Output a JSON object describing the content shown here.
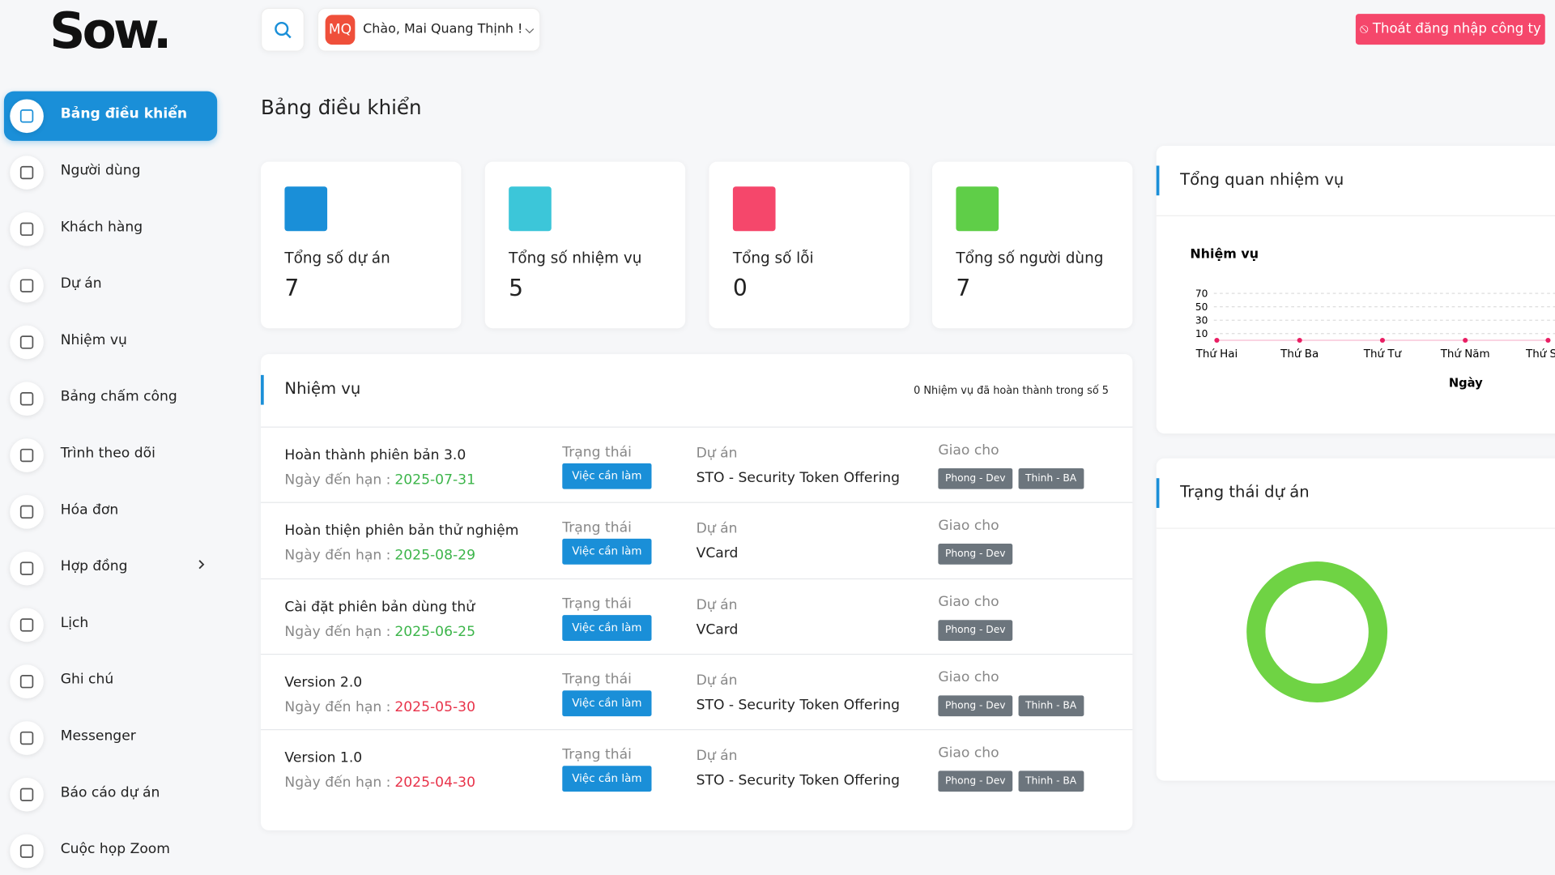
{
  "brand": "Sow.",
  "header": {
    "avatar": "MQ",
    "greeting": "Chào, Mai Quang Thịnh !",
    "logout": "Thoát đăng nhập công ty"
  },
  "sidebar": {
    "items": [
      "Bảng điều khiển",
      "Người dùng",
      "Khách hàng",
      "Dự án",
      "Nhiệm vụ",
      "Bảng chấm công",
      "Trình theo dõi",
      "Hóa đơn",
      "Hợp đồng",
      "Lịch",
      "Ghi chú",
      "Messenger",
      "Báo cáo dự án",
      "Cuộc họp Zoom"
    ]
  },
  "page_title": "Bảng điều khiển",
  "stats": [
    {
      "label": "Tổng số dự án",
      "value": 7,
      "color": "#1a8fd8"
    },
    {
      "label": "Tổng số nhiệm vụ",
      "value": 5,
      "color": "#3cc6d9"
    },
    {
      "label": "Tổng số lỗi",
      "value": 0,
      "color": "#f5476b"
    },
    {
      "label": "Tổng số người dùng",
      "value": 7,
      "color": "#5fce48"
    }
  ],
  "tasks": {
    "title": "Nhiệm vụ",
    "summary": "0 Nhiệm vụ đã hoàn thành trong số 5",
    "status_label": "Trạng thái",
    "project_label": "Dự án",
    "assignee_label": "Giao cho",
    "due_label": "Ngày đến hạn :",
    "rows": [
      {
        "name": "Hoàn thành phiên bản 3.0",
        "due": "2025-07-31",
        "due_color": "#3cb54a",
        "status": "Việc cần làm",
        "project": "STO - Security Token Offering",
        "assignees": [
          "Phong - Dev",
          "Thinh - BA"
        ]
      },
      {
        "name": "Hoàn thiện phiên bản thử nghiệm",
        "due": "2025-08-29",
        "due_color": "#3cb54a",
        "status": "Việc cần làm",
        "project": "VCard",
        "assignees": [
          "Phong - Dev"
        ]
      },
      {
        "name": "Cài đặt phiên bản dùng thử",
        "due": "2025-06-25",
        "due_color": "#3cb54a",
        "status": "Việc cần làm",
        "project": "VCard",
        "assignees": [
          "Phong - Dev"
        ]
      },
      {
        "name": "Version 2.0",
        "due": "2025-05-30",
        "due_color": "#e8334a",
        "status": "Việc cần làm",
        "project": "STO - Security Token Offering",
        "assignees": [
          "Phong - Dev",
          "Thinh - BA"
        ]
      },
      {
        "name": "Version 1.0",
        "due": "2025-04-30",
        "due_color": "#e8334a",
        "status": "Việc cần làm",
        "project": "STO - Security Token Offering",
        "assignees": [
          "Phong - Dev",
          "Thinh - BA"
        ]
      }
    ]
  },
  "panels": {
    "overview_title": "Tổng quan nhiệm vụ",
    "status_title": "Trạng thái dự án"
  },
  "chart_data": [
    {
      "type": "line",
      "title": "Nhiệm vụ",
      "x_label": "Ngày",
      "categories": [
        "Thứ Hai",
        "Thứ Ba",
        "Thứ Tư",
        "Thứ Năm",
        "Thứ Sáu"
      ],
      "values": [
        0,
        0,
        0,
        0,
        0
      ],
      "color": "#e91e63",
      "ylim": [
        0,
        80
      ],
      "yticks": [
        10,
        30,
        50,
        70
      ],
      "grid": true
    },
    {
      "type": "pie",
      "values": [
        100
      ],
      "color": "#6fd344"
    }
  ]
}
